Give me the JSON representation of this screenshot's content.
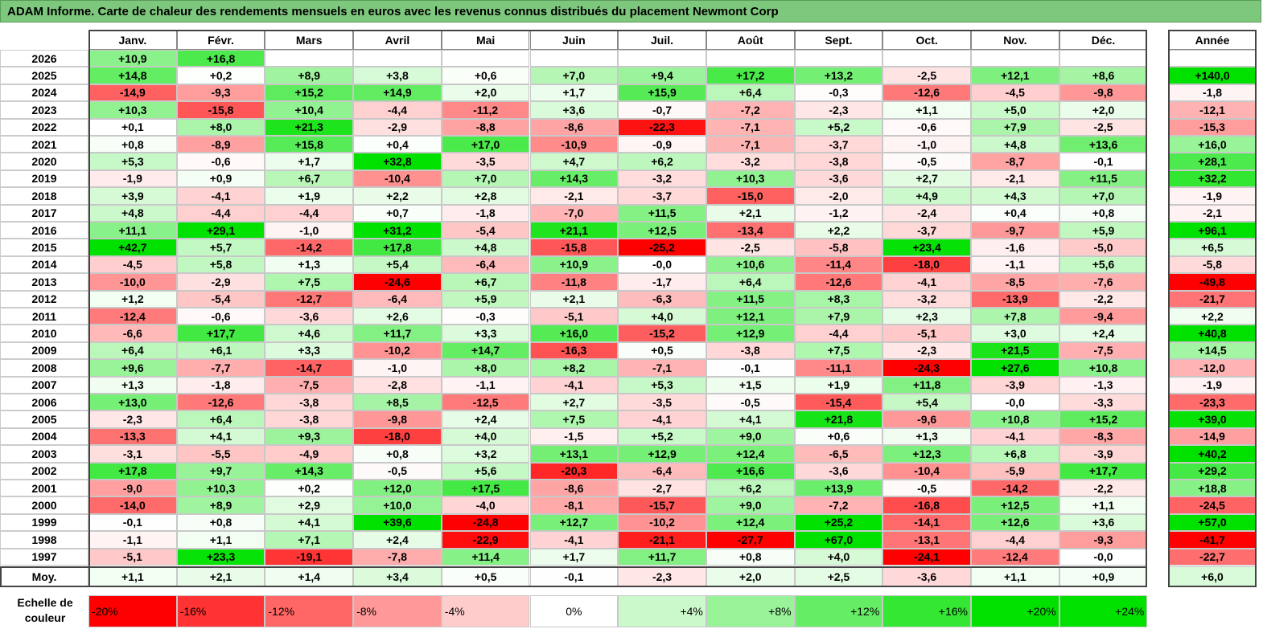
{
  "title": "ADAM Informe. Carte de chaleur des rendements mensuels en euros avec les revenus connus distribués du placement Newmont Corp",
  "chart_data": {
    "type": "heatmap",
    "months": [
      "Janv.",
      "Févr.",
      "Mars",
      "Avril",
      "Mai",
      "Juin",
      "Juil.",
      "Août",
      "Sept.",
      "Oct.",
      "Nov.",
      "Déc."
    ],
    "year_header": "Année",
    "rows": [
      {
        "year": "2026",
        "values": [
          "+10,9",
          "+16,8",
          "",
          "",
          "",
          "",
          "",
          "",
          "",
          "",
          "",
          ""
        ],
        "annual": ""
      },
      {
        "year": "2025",
        "values": [
          "+14,8",
          "+0,2",
          "+8,9",
          "+3,8",
          "+0,6",
          "+7,0",
          "+9,4",
          "+17,2",
          "+13,2",
          "-2,5",
          "+12,1",
          "+8,6"
        ],
        "annual": "+140,0"
      },
      {
        "year": "2024",
        "values": [
          "-14,9",
          "-9,3",
          "+15,2",
          "+14,9",
          "+2,0",
          "+1,7",
          "+15,9",
          "+6,4",
          "-0,3",
          "-12,6",
          "-4,5",
          "-9,8"
        ],
        "annual": "-1,8"
      },
      {
        "year": "2023",
        "values": [
          "+10,3",
          "-15,8",
          "+10,4",
          "-4,4",
          "-11,2",
          "+3,6",
          "-0,7",
          "-7,2",
          "-2,3",
          "+1,1",
          "+5,0",
          "+2,0"
        ],
        "annual": "-12,1"
      },
      {
        "year": "2022",
        "values": [
          "+0,1",
          "+8,0",
          "+21,3",
          "-2,9",
          "-8,8",
          "-8,6",
          "-22,3",
          "-7,1",
          "+5,2",
          "-0,6",
          "+7,9",
          "-2,5"
        ],
        "annual": "-15,3"
      },
      {
        "year": "2021",
        "values": [
          "+0,8",
          "-8,9",
          "+15,8",
          "+0,4",
          "+17,0",
          "-10,9",
          "-0,9",
          "-7,1",
          "-3,7",
          "-1,0",
          "+4,8",
          "+13,6"
        ],
        "annual": "+16,0"
      },
      {
        "year": "2020",
        "values": [
          "+5,3",
          "-0,6",
          "+1,7",
          "+32,8",
          "-3,5",
          "+4,7",
          "+6,2",
          "-3,2",
          "-3,8",
          "-0,5",
          "-8,7",
          "-0,1"
        ],
        "annual": "+28,1"
      },
      {
        "year": "2019",
        "values": [
          "-1,9",
          "+0,9",
          "+6,7",
          "-10,4",
          "+7,0",
          "+14,3",
          "-3,2",
          "+10,3",
          "-3,6",
          "+2,7",
          "-2,1",
          "+11,5"
        ],
        "annual": "+32,2"
      },
      {
        "year": "2018",
        "values": [
          "+3,9",
          "-4,1",
          "+1,9",
          "+2,2",
          "+2,8",
          "-2,1",
          "-3,7",
          "-15,0",
          "-2,0",
          "+4,9",
          "+4,3",
          "+7,0"
        ],
        "annual": "-1,9"
      },
      {
        "year": "2017",
        "values": [
          "+4,8",
          "-4,4",
          "-4,4",
          "+0,7",
          "-1,8",
          "-7,0",
          "+11,5",
          "+2,1",
          "-1,2",
          "-2,4",
          "+0,4",
          "+0,8"
        ],
        "annual": "-2,1"
      },
      {
        "year": "2016",
        "values": [
          "+11,1",
          "+29,1",
          "-1,0",
          "+31,2",
          "-5,4",
          "+21,1",
          "+12,5",
          "-13,4",
          "+2,2",
          "-3,7",
          "-9,7",
          "+5,9"
        ],
        "annual": "+96,1"
      },
      {
        "year": "2015",
        "values": [
          "+42,7",
          "+5,7",
          "-14,2",
          "+17,8",
          "+4,8",
          "-15,8",
          "-25,2",
          "-2,5",
          "-5,8",
          "+23,4",
          "-1,6",
          "-5,0"
        ],
        "annual": "+6,5"
      },
      {
        "year": "2014",
        "values": [
          "-4,5",
          "+5,8",
          "+1,3",
          "+5,4",
          "-6,4",
          "+10,9",
          "-0,0",
          "+10,6",
          "-11,4",
          "-18,0",
          "-1,1",
          "+5,6"
        ],
        "annual": "-5,8"
      },
      {
        "year": "2013",
        "values": [
          "-10,0",
          "-2,9",
          "+7,5",
          "-24,6",
          "+6,7",
          "-11,8",
          "-1,7",
          "+6,4",
          "-12,6",
          "-4,1",
          "-8,5",
          "-7,6"
        ],
        "annual": "-49,8"
      },
      {
        "year": "2012",
        "values": [
          "+1,2",
          "-5,4",
          "-12,7",
          "-6,4",
          "+5,9",
          "+2,1",
          "-6,3",
          "+11,5",
          "+8,3",
          "-3,2",
          "-13,9",
          "-2,2"
        ],
        "annual": "-21,7"
      },
      {
        "year": "2011",
        "values": [
          "-12,4",
          "-0,6",
          "-3,6",
          "+2,6",
          "-0,3",
          "-5,1",
          "+4,0",
          "+12,1",
          "+7,9",
          "+2,3",
          "+7,8",
          "-9,4"
        ],
        "annual": "+2,2"
      },
      {
        "year": "2010",
        "values": [
          "-6,6",
          "+17,7",
          "+4,6",
          "+11,7",
          "+3,3",
          "+16,0",
          "-15,2",
          "+12,9",
          "-4,4",
          "-5,1",
          "+3,0",
          "+2,4"
        ],
        "annual": "+40,8"
      },
      {
        "year": "2009",
        "values": [
          "+6,4",
          "+6,1",
          "+3,3",
          "-10,2",
          "+14,7",
          "-16,3",
          "+0,5",
          "-3,8",
          "+7,5",
          "-2,3",
          "+21,5",
          "-7,5"
        ],
        "annual": "+14,5"
      },
      {
        "year": "2008",
        "values": [
          "+9,6",
          "-7,7",
          "-14,7",
          "-1,0",
          "+8,0",
          "+8,2",
          "-7,1",
          "-0,1",
          "-11,1",
          "-24,3",
          "+27,6",
          "+10,8"
        ],
        "annual": "-12,0"
      },
      {
        "year": "2007",
        "values": [
          "+1,3",
          "-1,8",
          "-7,5",
          "-2,8",
          "-1,1",
          "-4,1",
          "+5,3",
          "+1,5",
          "+1,9",
          "+11,8",
          "-3,9",
          "-1,3"
        ],
        "annual": "-1,9"
      },
      {
        "year": "2006",
        "values": [
          "+13,0",
          "-12,6",
          "-3,8",
          "+8,5",
          "-12,5",
          "+2,7",
          "-3,5",
          "-0,5",
          "-15,4",
          "+5,4",
          "-0,0",
          "-3,3"
        ],
        "annual": "-23,3"
      },
      {
        "year": "2005",
        "values": [
          "-2,3",
          "+6,4",
          "-3,8",
          "-9,8",
          "+2,4",
          "+7,5",
          "-4,1",
          "+4,1",
          "+21,8",
          "-9,6",
          "+10,8",
          "+15,2"
        ],
        "annual": "+39,0"
      },
      {
        "year": "2004",
        "values": [
          "-13,3",
          "+4,1",
          "+9,3",
          "-18,0",
          "+4,0",
          "-1,5",
          "+5,2",
          "+9,0",
          "+0,6",
          "+1,3",
          "-4,1",
          "-8,3"
        ],
        "annual": "-14,9"
      },
      {
        "year": "2003",
        "values": [
          "-3,1",
          "-5,5",
          "-4,9",
          "+0,8",
          "+3,2",
          "+13,1",
          "+12,9",
          "+12,4",
          "-6,5",
          "+12,3",
          "+6,8",
          "-3,9"
        ],
        "annual": "+40,2"
      },
      {
        "year": "2002",
        "values": [
          "+17,8",
          "+9,7",
          "+14,3",
          "-0,5",
          "+5,6",
          "-20,3",
          "-6,4",
          "+16,6",
          "-3,6",
          "-10,4",
          "-5,9",
          "+17,7"
        ],
        "annual": "+29,2"
      },
      {
        "year": "2001",
        "values": [
          "-9,0",
          "+10,3",
          "+0,2",
          "+12,0",
          "+17,5",
          "-8,6",
          "-2,7",
          "+6,2",
          "+13,9",
          "-0,5",
          "-14,2",
          "-2,2"
        ],
        "annual": "+18,8"
      },
      {
        "year": "2000",
        "values": [
          "-14,0",
          "+8,9",
          "+2,9",
          "+10,0",
          "-4,0",
          "-8,1",
          "-15,7",
          "+9,0",
          "-7,2",
          "-16,8",
          "+12,5",
          "+1,1"
        ],
        "annual": "-24,5"
      },
      {
        "year": "1999",
        "values": [
          "-0,1",
          "+0,8",
          "+4,1",
          "+39,6",
          "-24,8",
          "+12,7",
          "-10,2",
          "+12,4",
          "+25,2",
          "-14,1",
          "+12,6",
          "+3,6"
        ],
        "annual": "+57,0"
      },
      {
        "year": "1998",
        "values": [
          "-1,1",
          "+1,1",
          "+7,1",
          "+2,4",
          "-22,9",
          "-4,1",
          "-21,1",
          "-27,7",
          "+67,0",
          "-13,1",
          "-4,4",
          "-9,3"
        ],
        "annual": "-41,7"
      },
      {
        "year": "1997",
        "values": [
          "-5,1",
          "+23,3",
          "-19,1",
          "-7,8",
          "+11,4",
          "+1,7",
          "+11,7",
          "+0,8",
          "+4,0",
          "-24,1",
          "-12,4",
          "-0,0"
        ],
        "annual": "-22,7"
      }
    ],
    "average": {
      "label": "Moy.",
      "values": [
        "+1,1",
        "+2,1",
        "+1,4",
        "+3,4",
        "+0,5",
        "-0,1",
        "-2,3",
        "+2,0",
        "+2,5",
        "-3,6",
        "+1,1",
        "+0,9"
      ],
      "annual": "+6,0"
    },
    "scale": {
      "label": "Echelle de couleur",
      "steps": [
        "-20%",
        "-16%",
        "-12%",
        "-8%",
        "-4%",
        "0%",
        "+4%",
        "+8%",
        "+12%",
        "+16%",
        "+20%",
        "+24%"
      ],
      "step_values": [
        -20,
        -16,
        -12,
        -8,
        -4,
        0,
        4,
        8,
        12,
        16,
        20,
        24
      ]
    },
    "colors": {
      "negative_max": "#ff0000",
      "neutral": "#ffffff",
      "positive_max": "#00e000"
    }
  }
}
